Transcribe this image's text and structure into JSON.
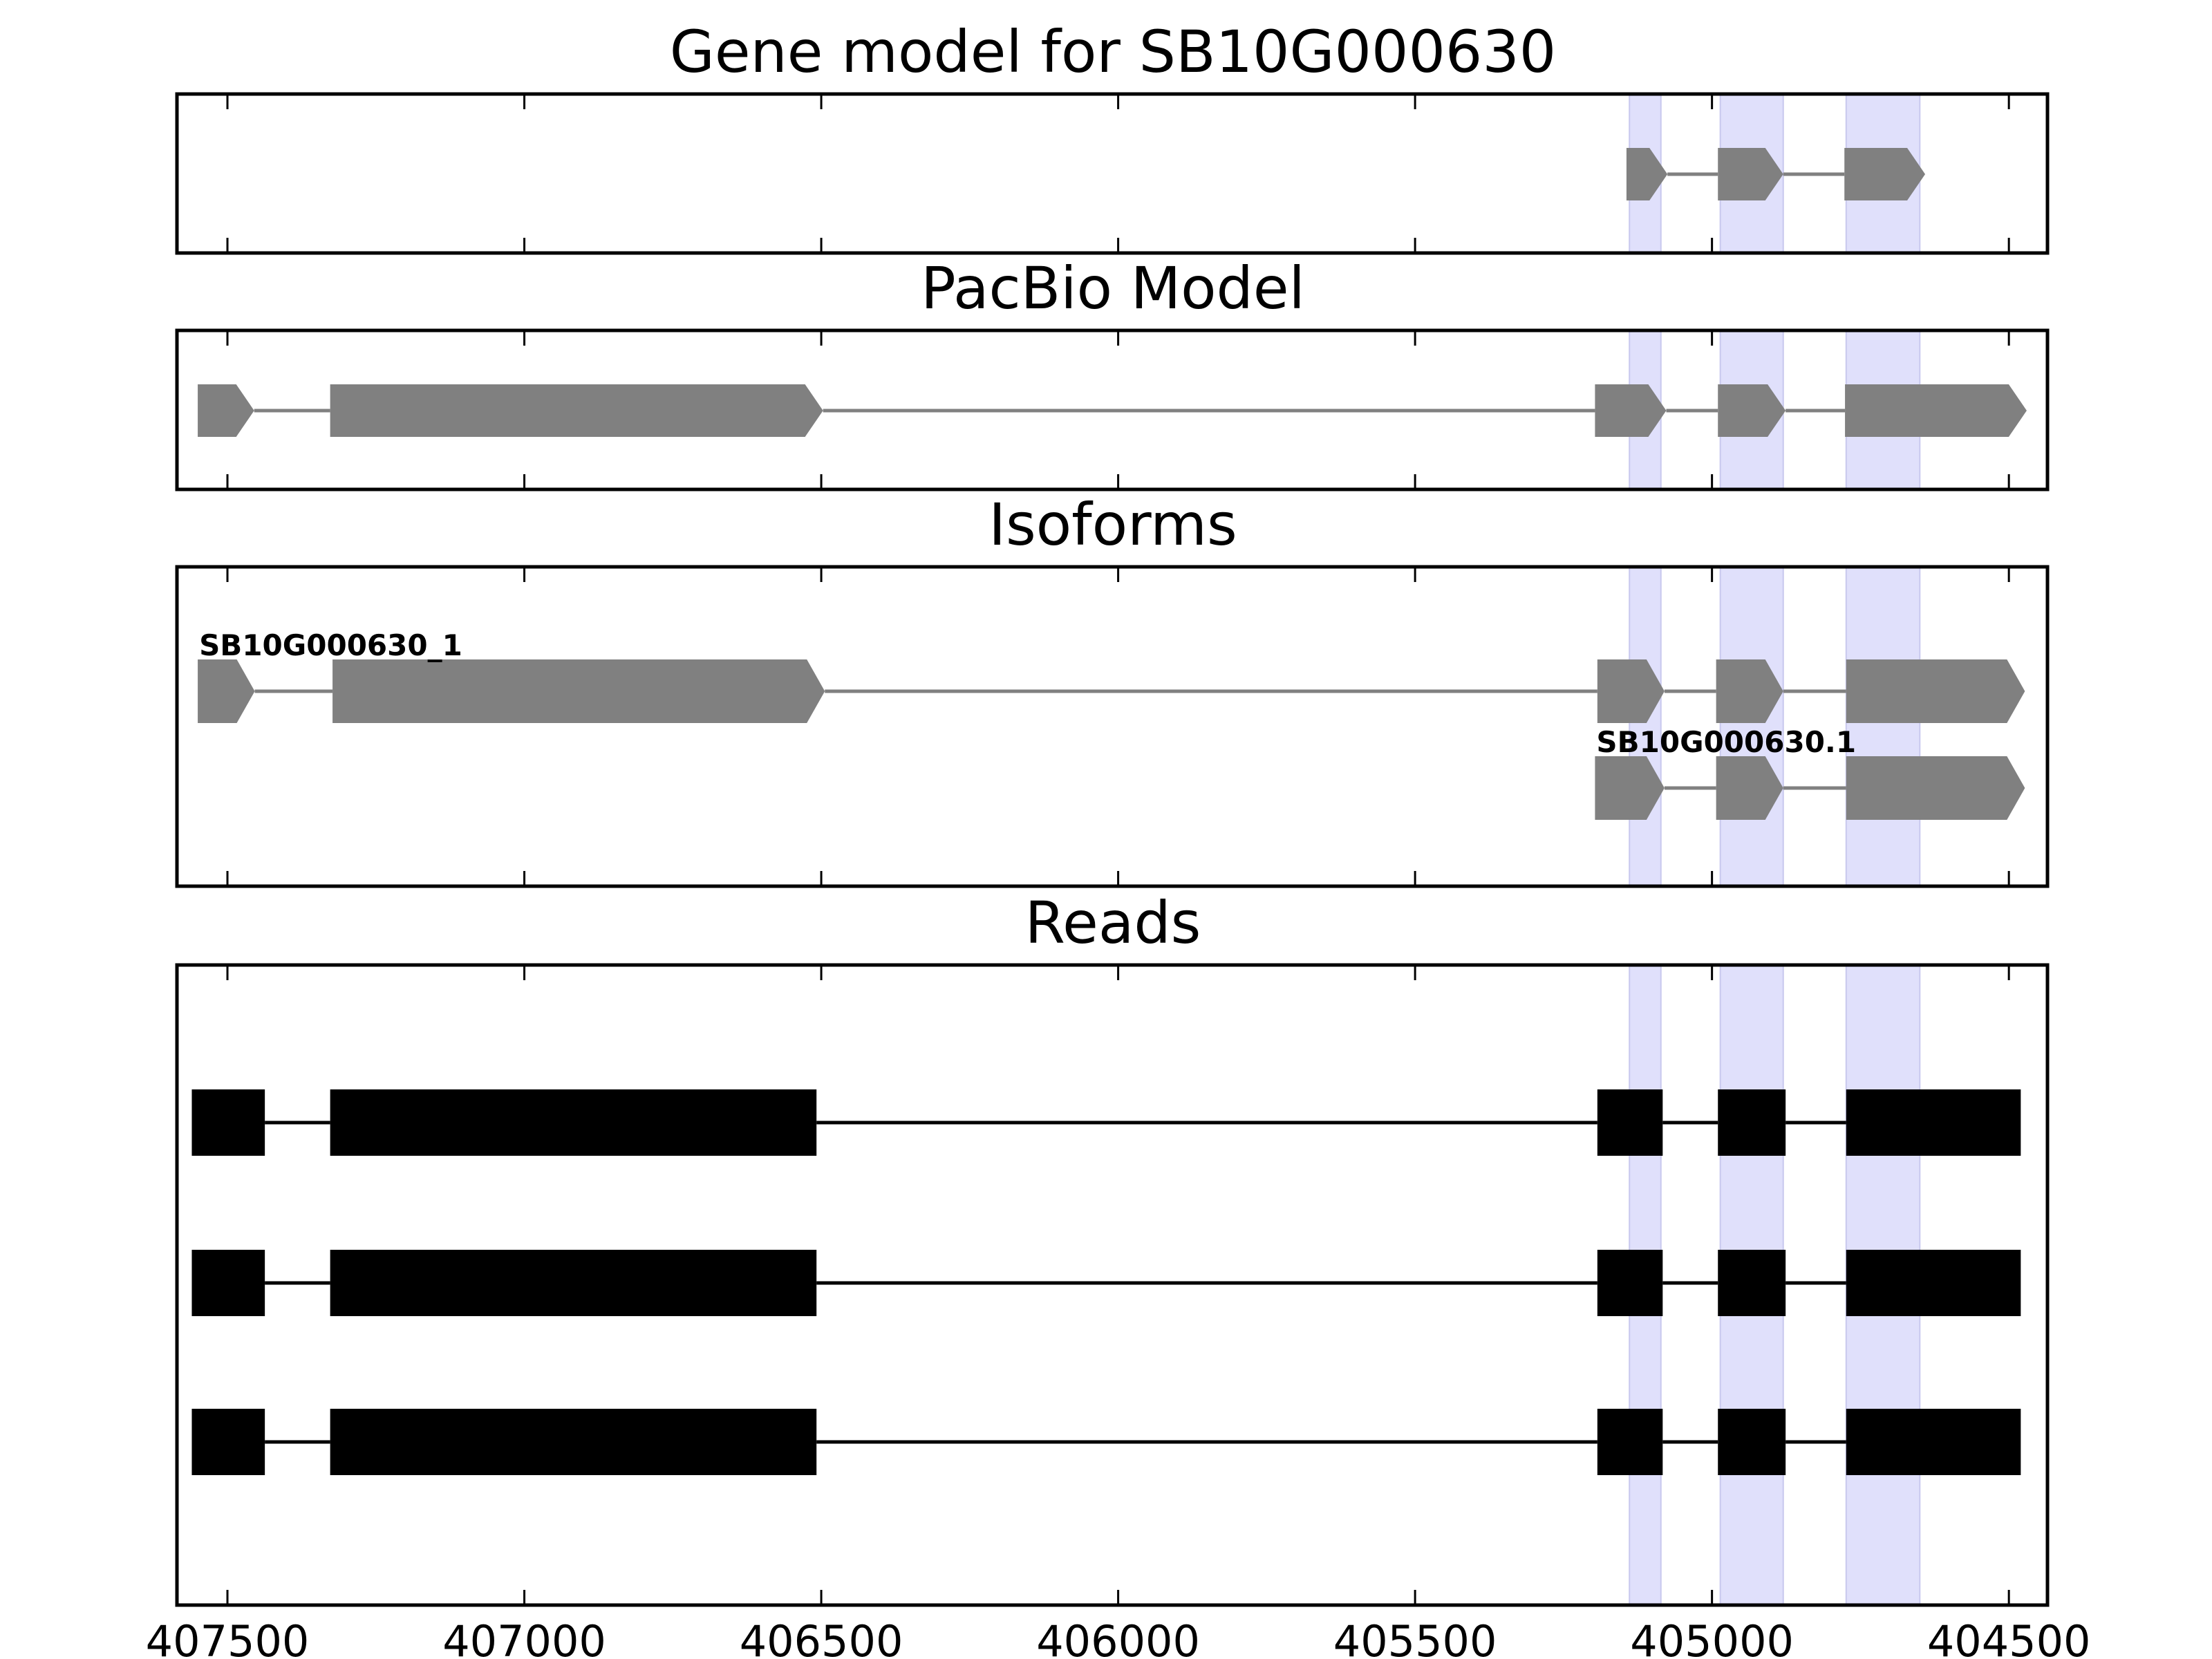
{
  "chart_data": {
    "type": "gene-structure",
    "x_axis": {
      "range": [
        407585,
        404435
      ],
      "reversed": true,
      "ticks": [
        407500,
        407000,
        406500,
        406000,
        405500,
        405000,
        404500
      ],
      "tick_labels": [
        "407500",
        "407000",
        "406500",
        "406000",
        "405500",
        "405000",
        "404500"
      ]
    },
    "highlight_regions": [
      {
        "start": 405139,
        "end": 405086
      },
      {
        "start": 404986,
        "end": 404880
      },
      {
        "start": 404774,
        "end": 404650
      }
    ],
    "colors": {
      "feature_gray": "#808080",
      "read_black": "#000000",
      "highlight": "#e0e0fb"
    },
    "panels": [
      {
        "title": "Gene model for SB10G000630",
        "tracks": [
          {
            "label": "",
            "style": "arrow",
            "exons": [
              [
                405144,
                405075
              ],
              [
                404990,
                404880
              ],
              [
                404777,
                404641
              ]
            ]
          }
        ]
      },
      {
        "title": "PacBio Model",
        "tracks": [
          {
            "label": "",
            "style": "arrow",
            "exons": [
              [
                407550,
                407455
              ],
              [
                407327,
                406497
              ],
              [
                405197,
                405077
              ],
              [
                404990,
                404876
              ],
              [
                404776,
                404470
              ]
            ]
          }
        ]
      },
      {
        "title": "Isoforms",
        "tracks": [
          {
            "label": "SB10G000630_1",
            "style": "arrow",
            "exons": [
              [
                407550,
                407454
              ],
              [
                407323,
                406494
              ],
              [
                405193,
                405080
              ],
              [
                404993,
                404880
              ],
              [
                404774,
                404473
              ]
            ]
          },
          {
            "label": "SB10G000630.1",
            "style": "arrow",
            "exons": [
              [
                405197,
                405080
              ],
              [
                404993,
                404880
              ],
              [
                404774,
                404473
              ]
            ]
          }
        ]
      },
      {
        "title": "Reads",
        "tracks": [
          {
            "label": "",
            "style": "block",
            "exons": [
              [
                407560,
                407437
              ],
              [
                407327,
                406508
              ],
              [
                405193,
                405083
              ],
              [
                404990,
                404876
              ],
              [
                404774,
                404480
              ]
            ]
          },
          {
            "label": "",
            "style": "block",
            "exons": [
              [
                407560,
                407437
              ],
              [
                407327,
                406508
              ],
              [
                405193,
                405083
              ],
              [
                404990,
                404876
              ],
              [
                404774,
                404480
              ]
            ]
          },
          {
            "label": "",
            "style": "block",
            "exons": [
              [
                407560,
                407437
              ],
              [
                407327,
                406508
              ],
              [
                405193,
                405083
              ],
              [
                404990,
                404876
              ],
              [
                404774,
                404480
              ]
            ]
          }
        ]
      }
    ]
  }
}
